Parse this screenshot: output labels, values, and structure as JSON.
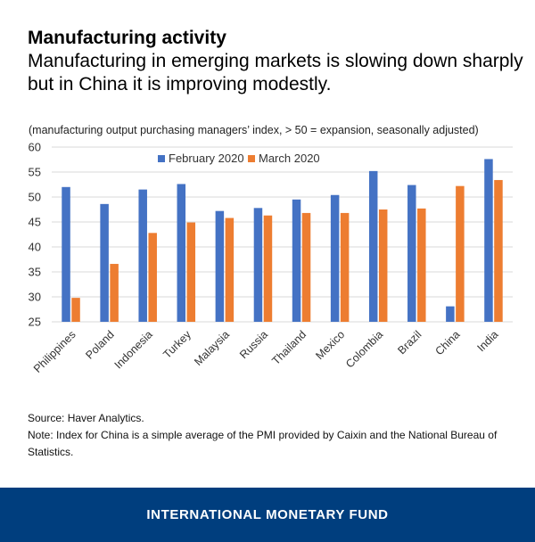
{
  "header": {
    "title": "Manufacturing activity",
    "subtitle": "Manufacturing in emerging markets is slowing down sharply but in China it is improving modestly."
  },
  "chart_note": "(manufacturing output purchasing managers’ index, > 50 = expansion, seasonally adjusted)",
  "chart_data": {
    "type": "bar",
    "categories": [
      "Philippines",
      "Poland",
      "Indonesia",
      "Turkey",
      "Malaysia",
      "Russia",
      "Thailand",
      "Mexico",
      "Colombia",
      "Brazil",
      "China",
      "India"
    ],
    "series": [
      {
        "name": "February 2020",
        "color": "#4472c4",
        "values": [
          52.0,
          48.6,
          51.5,
          52.6,
          47.2,
          47.8,
          49.5,
          50.4,
          55.2,
          52.4,
          28.1,
          57.6
        ]
      },
      {
        "name": "March 2020",
        "color": "#ed7d31",
        "values": [
          29.8,
          36.6,
          42.8,
          44.9,
          45.8,
          46.3,
          46.8,
          46.8,
          47.5,
          47.7,
          52.2,
          53.4
        ]
      }
    ],
    "ylim": [
      25,
      60
    ],
    "yticks": [
      25,
      30,
      35,
      40,
      45,
      50,
      55,
      60
    ],
    "grid": true,
    "legend_position": "top-center"
  },
  "footer": {
    "source": "Source: Haver Analytics.",
    "note": "Note: Index for China is a simple average of the PMI provided by Caixin and the National Bureau of Statistics."
  },
  "brand": {
    "name": "INTERNATIONAL MONETARY FUND",
    "bar_color": "#003e7e"
  }
}
